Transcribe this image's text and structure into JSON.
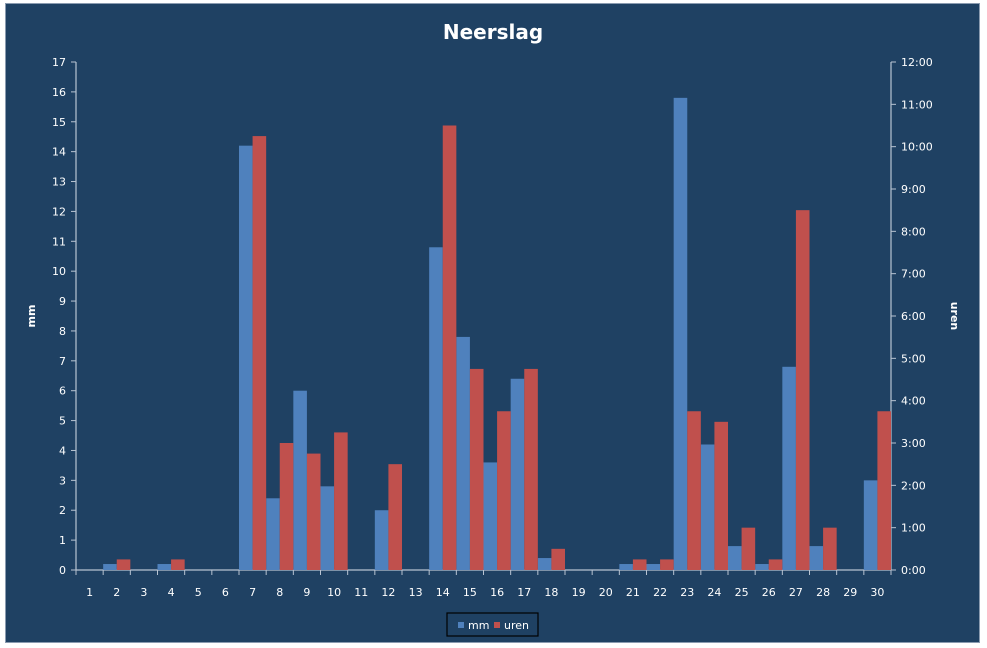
{
  "chart_data": {
    "type": "bar",
    "title": "Neerslag",
    "ylabel": "mm",
    "y2label": "uren",
    "ylim": [
      0,
      17
    ],
    "y2lim": [
      0,
      12
    ],
    "y_ticks": [
      "0",
      "1",
      "2",
      "3",
      "4",
      "5",
      "6",
      "7",
      "8",
      "9",
      "10",
      "11",
      "12",
      "13",
      "14",
      "15",
      "16",
      "17"
    ],
    "y2_ticks": [
      "0:00",
      "1:00",
      "2:00",
      "3:00",
      "4:00",
      "5:00",
      "6:00",
      "7:00",
      "8:00",
      "9:00",
      "10:00",
      "11:00",
      "12:00"
    ],
    "categories": [
      "1",
      "2",
      "3",
      "4",
      "5",
      "6",
      "7",
      "8",
      "9",
      "10",
      "11",
      "12",
      "13",
      "14",
      "15",
      "16",
      "17",
      "18",
      "19",
      "20",
      "21",
      "22",
      "23",
      "24",
      "25",
      "26",
      "27",
      "28",
      "29",
      "30"
    ],
    "series": [
      {
        "name": "mm",
        "axis": "left",
        "color": "#4f81bd",
        "values": [
          0,
          0.2,
          0,
          0.2,
          0,
          0,
          14.2,
          2.4,
          6.0,
          2.8,
          0,
          2.0,
          0,
          10.8,
          7.8,
          3.6,
          6.4,
          0.4,
          0,
          0,
          0.2,
          0.2,
          15.8,
          4.2,
          0.8,
          0.2,
          6.8,
          0.8,
          0,
          3.0
        ]
      },
      {
        "name": "uren",
        "axis": "right",
        "unit": "hours",
        "color": "#c0504d",
        "values": [
          0,
          0.25,
          0,
          0.25,
          0,
          0,
          10.25,
          3.0,
          2.75,
          3.25,
          0,
          2.5,
          0,
          10.5,
          4.75,
          3.75,
          4.75,
          0.5,
          0,
          0,
          0.25,
          0.25,
          3.75,
          3.5,
          1.0,
          0.25,
          8.5,
          1.0,
          0,
          3.75
        ]
      }
    ],
    "grid": false,
    "legend": "bottom"
  }
}
